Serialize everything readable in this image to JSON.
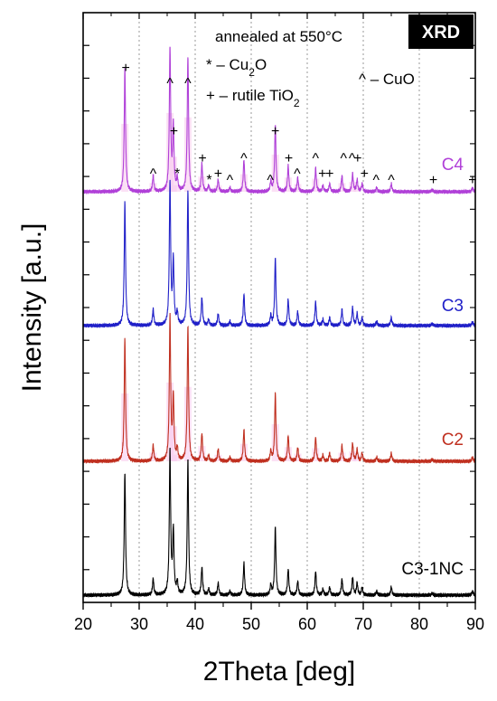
{
  "chart_data": {
    "type": "line",
    "title": "",
    "xlabel": "2Theta [deg]",
    "ylabel": "Intensity [a.u.]",
    "xlim": [
      20,
      90
    ],
    "x_ticks": [
      20,
      30,
      40,
      50,
      60,
      70,
      80,
      90
    ],
    "y_ticks_shown": false,
    "grid": "vertical dotted",
    "badge": "XRD",
    "annotation": "annealed at 550°C",
    "legend_entries": [
      {
        "symbol": "*",
        "text": "– Cu2O"
      },
      {
        "symbol": "+",
        "text": "– rutile TiO2"
      },
      {
        "symbol": "^",
        "text": "– CuO"
      }
    ],
    "peaks": [
      {
        "x": 27.45,
        "h": 0.62
      },
      {
        "x": 32.5,
        "h": 0.08
      },
      {
        "x": 35.5,
        "h": 0.72
      },
      {
        "x": 36.1,
        "h": 0.32
      },
      {
        "x": 36.8,
        "h": 0.06
      },
      {
        "x": 38.7,
        "h": 0.68
      },
      {
        "x": 41.2,
        "h": 0.14
      },
      {
        "x": 42.4,
        "h": 0.03
      },
      {
        "x": 44.1,
        "h": 0.06
      },
      {
        "x": 46.2,
        "h": 0.02
      },
      {
        "x": 48.7,
        "h": 0.16
      },
      {
        "x": 53.5,
        "h": 0.05
      },
      {
        "x": 54.3,
        "h": 0.34
      },
      {
        "x": 56.6,
        "h": 0.13
      },
      {
        "x": 58.3,
        "h": 0.07
      },
      {
        "x": 61.5,
        "h": 0.12
      },
      {
        "x": 62.8,
        "h": 0.03
      },
      {
        "x": 64.0,
        "h": 0.04
      },
      {
        "x": 66.2,
        "h": 0.08
      },
      {
        "x": 68.1,
        "h": 0.09
      },
      {
        "x": 68.9,
        "h": 0.06
      },
      {
        "x": 69.8,
        "h": 0.04
      },
      {
        "x": 72.4,
        "h": 0.02
      },
      {
        "x": 75.0,
        "h": 0.04
      },
      {
        "x": 82.3,
        "h": 0.01
      },
      {
        "x": 89.5,
        "h": 0.02
      }
    ],
    "series": [
      {
        "name": "C4",
        "color": "#b040d8",
        "highlight_color": "#f7c8ec",
        "scale": 1.0
      },
      {
        "name": "C3",
        "color": "#2020c8",
        "scale": 1.0
      },
      {
        "name": "C2",
        "color": "#c03020",
        "highlight_color": "#f7c8ec",
        "scale": 1.0
      },
      {
        "name": "C3-1NC",
        "color": "#000000",
        "scale": 1.0
      }
    ],
    "phase_markers": [
      {
        "symbol": "+",
        "x": 27.6,
        "row": 0
      },
      {
        "symbol": "^",
        "x": 35.5,
        "row": 1
      },
      {
        "symbol": "^",
        "x": 38.7,
        "row": 1
      },
      {
        "symbol": "+",
        "x": 36.2,
        "row": 2
      },
      {
        "symbol": "+",
        "x": 54.3,
        "row": 2
      },
      {
        "symbol": "+",
        "x": 41.3,
        "row": 3
      },
      {
        "symbol": "^",
        "x": 48.7,
        "row": 3
      },
      {
        "symbol": "+",
        "x": 56.7,
        "row": 3
      },
      {
        "symbol": "^",
        "x": 61.5,
        "row": 3
      },
      {
        "symbol": "^",
        "x": 66.5,
        "row": 3
      },
      {
        "symbol": "^",
        "x": 68.0,
        "row": 3
      },
      {
        "symbol": "+",
        "x": 69.0,
        "row": 3
      },
      {
        "symbol": "^",
        "x": 32.5,
        "row": 4
      },
      {
        "symbol": "*",
        "x": 36.8,
        "row": 4
      },
      {
        "symbol": "+",
        "x": 44.1,
        "row": 4
      },
      {
        "symbol": "^",
        "x": 58.2,
        "row": 4
      },
      {
        "symbol": "+",
        "x": 62.7,
        "row": 4
      },
      {
        "symbol": "+",
        "x": 64.0,
        "row": 4
      },
      {
        "symbol": "+",
        "x": 70.2,
        "row": 4
      },
      {
        "symbol": "*",
        "x": 42.5,
        "row": 5
      },
      {
        "symbol": "^",
        "x": 46.2,
        "row": 5
      },
      {
        "symbol": "^",
        "x": 53.4,
        "row": 5
      },
      {
        "symbol": "^",
        "x": 72.3,
        "row": 5
      },
      {
        "symbol": "^",
        "x": 75.0,
        "row": 5
      },
      {
        "symbol": "+",
        "x": 82.5,
        "row": 5
      },
      {
        "symbol": "+",
        "x": 89.5,
        "row": 5
      }
    ]
  }
}
